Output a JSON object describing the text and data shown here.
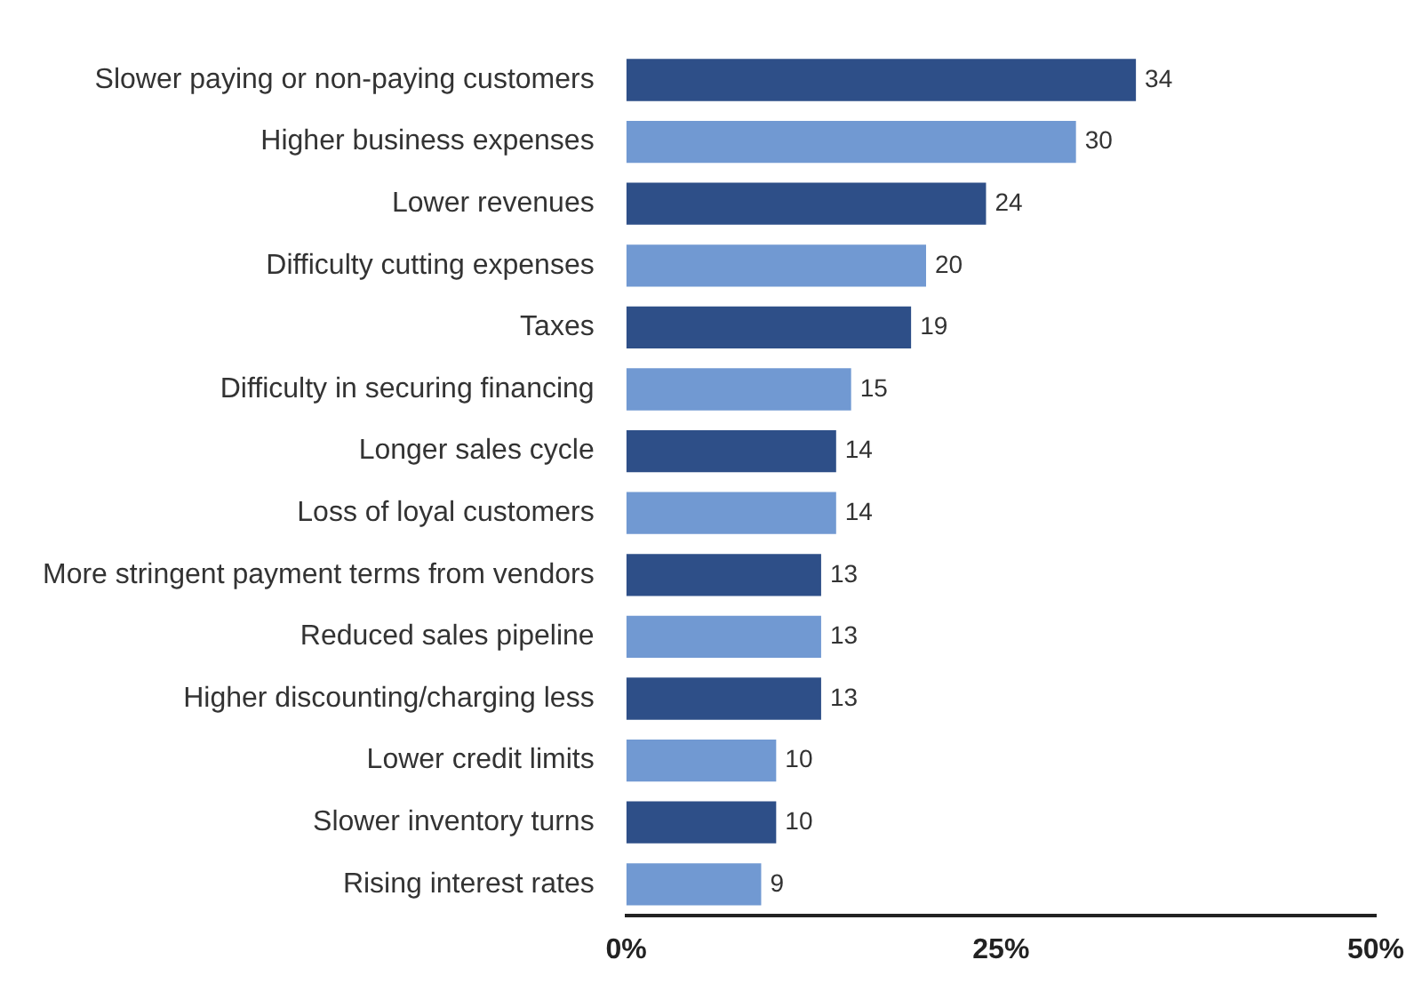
{
  "chart_data": {
    "type": "bar",
    "orientation": "horizontal",
    "categories": [
      "Slower paying or non-paying customers",
      "Higher business expenses",
      "Lower revenues",
      "Difficulty cutting expenses",
      "Taxes",
      "Difficulty in securing financing",
      "Longer sales cycle",
      "Loss of loyal customers",
      "More stringent payment terms from vendors",
      "Reduced sales pipeline",
      "Higher discounting/charging less",
      "Lower credit limits",
      "Slower inventory turns",
      "Rising interest rates"
    ],
    "values": [
      34,
      30,
      24,
      20,
      19,
      15,
      14,
      14,
      13,
      13,
      13,
      10,
      10,
      9
    ],
    "colors": [
      "#2e4f88",
      "#7199d2",
      "#2e4f88",
      "#7199d2",
      "#2e4f88",
      "#7199d2",
      "#2e4f88",
      "#7199d2",
      "#2e4f88",
      "#7199d2",
      "#2e4f88",
      "#7199d2",
      "#2e4f88",
      "#7199d2"
    ],
    "xlim": [
      0,
      50
    ],
    "xticks": [
      {
        "value": 0,
        "label": "0%"
      },
      {
        "value": 25,
        "label": "25%"
      },
      {
        "value": 50,
        "label": "50%"
      }
    ],
    "data_labels": true,
    "grid": false,
    "legend": false
  }
}
